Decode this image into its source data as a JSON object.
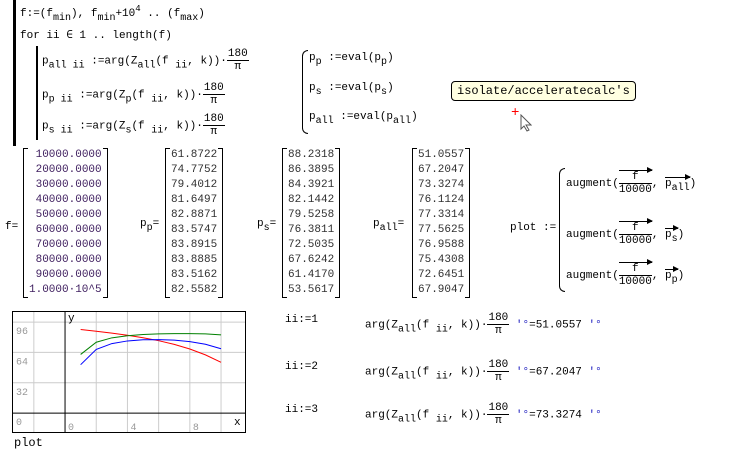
{
  "program": {
    "f_def": "f:=(f_min), f_min+10^4 .. (f_max)",
    "for_line": "for ii ∈ 1 .. length(f)",
    "body": [
      "p_all_ii := arg(Z_all(f_ii, k))·180/π",
      "p_p_ii := arg(Z_p(f_ii, k))·180/π",
      "p_s_ii := arg(Z_s(f_ii, k))·180/π"
    ]
  },
  "evals": [
    "p_p := eval(p_p)",
    "p_s := eval(p_s)",
    "p_all := eval(p_all)"
  ],
  "tooltip": "isolate/acceleratecalc's",
  "matrices": {
    "f": {
      "label": "f",
      "values": [
        "10000.0000",
        "20000.0000",
        "30000.0000",
        "40000.0000",
        "50000.0000",
        "60000.0000",
        "70000.0000",
        "80000.0000",
        "90000.0000",
        "1.0000·10^5"
      ]
    },
    "p_p": {
      "label": "p_p",
      "values": [
        "61.8722",
        "74.7752",
        "79.4012",
        "81.6497",
        "82.8871",
        "83.5747",
        "83.8915",
        "83.8885",
        "83.5162",
        "82.5582"
      ]
    },
    "p_s": {
      "label": "p_s",
      "values": [
        "88.2318",
        "86.3895",
        "84.3921",
        "82.1442",
        "79.5258",
        "76.3811",
        "72.5035",
        "67.6242",
        "61.4170",
        "53.5617"
      ]
    },
    "p_all": {
      "label": "p_all",
      "values": [
        "51.0557",
        "67.2047",
        "73.3274",
        "76.1124",
        "77.3314",
        "77.5625",
        "76.9588",
        "75.4308",
        "72.6451",
        "67.9047"
      ]
    }
  },
  "plot_def": {
    "label": "plot :=",
    "rows": [
      "augment(f/10000, p_all)",
      "augment(f/10000, p_s)",
      "augment(f/10000, p_p)"
    ]
  },
  "checks": [
    {
      "assign": "ii:=1",
      "expr": "arg(Z_all(f_ii, k))·180/π",
      "unit": "'°",
      "result": "51.0557"
    },
    {
      "assign": "ii:=2",
      "expr": "arg(Z_all(f_ii, k))·180/π",
      "unit": "'°",
      "result": "67.2047"
    },
    {
      "assign": "ii:=3",
      "expr": "arg(Z_all(f_ii, k))·180/π",
      "unit": "'°",
      "result": "73.3274"
    }
  ],
  "chart_data": {
    "type": "line",
    "title": "",
    "xlabel": "x",
    "ylabel": "y",
    "caption": "plot",
    "xlim": [
      -3.4,
      11.6
    ],
    "ylim": [
      -21,
      107.7
    ],
    "grid": true,
    "xticks": [
      0,
      4,
      8
    ],
    "yticks": [
      0,
      32,
      64,
      96
    ],
    "x": [
      1,
      2,
      3,
      4,
      5,
      6,
      7,
      8,
      9,
      10
    ],
    "series": [
      {
        "color": "#ff0000",
        "values": [
          88.2318,
          86.3895,
          84.3921,
          82.1442,
          79.5258,
          76.3811,
          72.5035,
          67.6242,
          61.417,
          53.5617
        ]
      },
      {
        "color": "#008000",
        "values": [
          61.8722,
          74.7752,
          79.4012,
          81.6497,
          82.8871,
          83.5747,
          83.8915,
          83.8885,
          83.5162,
          82.5582
        ]
      },
      {
        "color": "#0000ff",
        "values": [
          51.0557,
          67.2047,
          73.3274,
          76.1124,
          77.3314,
          77.5625,
          76.9588,
          75.4308,
          72.6451,
          67.9047
        ]
      }
    ]
  }
}
